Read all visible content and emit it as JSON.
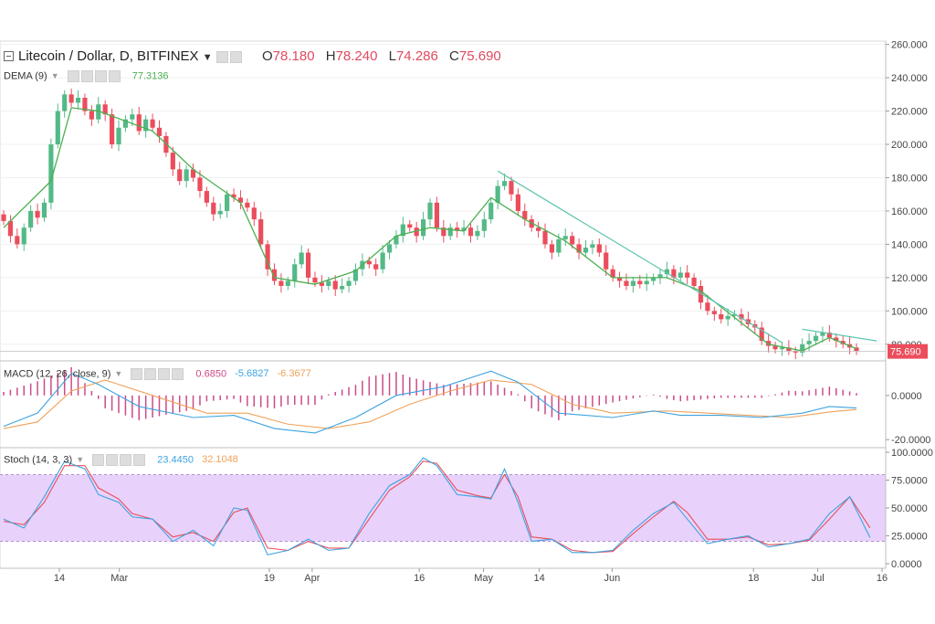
{
  "header": {
    "symbol": "Litecoin / Dollar, D, BITFINEX",
    "open_label": "O",
    "open": "78.180",
    "high_label": "H",
    "high": "78.240",
    "low_label": "L",
    "low": "74.286",
    "close_label": "C",
    "close": "75.690"
  },
  "indicators": {
    "dema": {
      "label": "DEMA (9)",
      "value": "77.3136"
    },
    "macd": {
      "label": "MACD (12, 26, close, 9)",
      "hist": "0.6850",
      "macd": "-5.6827",
      "signal": "-6.3677"
    },
    "stoch": {
      "label": "Stoch (14, 3, 3)",
      "k": "23.4450",
      "d": "32.1048"
    }
  },
  "colors": {
    "up": "#53b987",
    "down": "#eb4d5c",
    "dema": "#4caf50",
    "trendline": "#5ec6b0",
    "macd": "#3da3e0",
    "signal": "#f0a25a",
    "hist": "#cc4a8a",
    "stoch_k": "#3da3e0",
    "stoch_d": "#eb4d5c",
    "stoch_band": "#e8d2fb"
  },
  "chart_data": {
    "type": "candlestick",
    "price_axis": {
      "ylim": [
        70,
        262
      ],
      "ticks": [
        80,
        100,
        120,
        140,
        160,
        180,
        200,
        220,
        240,
        260
      ],
      "tick_labels": [
        "80.000",
        "100.000",
        "120.000",
        "140.000",
        "160.000",
        "180.000",
        "200.000",
        "220.000",
        "240.000",
        "260.000"
      ],
      "last_price": 75.69,
      "last_price_label": "75.690"
    },
    "x_axis": {
      "labels": [
        "14",
        "Mar",
        "19",
        "Apr",
        "16",
        "May",
        "14",
        "Jun",
        "18",
        "Jul",
        "16"
      ],
      "label_days": [
        14,
        28,
        63,
        73,
        98,
        113,
        126,
        143,
        176,
        191,
        206
      ]
    },
    "candles_daily_close": [
      154,
      145,
      140,
      150,
      160,
      156,
      165,
      200,
      220,
      230,
      225,
      228,
      220,
      215,
      224,
      218,
      200,
      210,
      215,
      218,
      208,
      215,
      210,
      205,
      195,
      185,
      178,
      185,
      180,
      172,
      165,
      158,
      160,
      170,
      168,
      165,
      162,
      155,
      140,
      125,
      118,
      115,
      118,
      128,
      135,
      120,
      117,
      115,
      118,
      113,
      115,
      118,
      125,
      130,
      128,
      125,
      135,
      140,
      145,
      152,
      150,
      145,
      155,
      165,
      150,
      145,
      150,
      148,
      150,
      145,
      148,
      155,
      165,
      175,
      178,
      170,
      160,
      155,
      150,
      148,
      140,
      135,
      143,
      145,
      140,
      135,
      138,
      140,
      135,
      125,
      120,
      118,
      115,
      118,
      116,
      118,
      120,
      122,
      125,
      120,
      123,
      120,
      115,
      105,
      100,
      98,
      95,
      97,
      98,
      95,
      92,
      90,
      82,
      79,
      77,
      78,
      76,
      75,
      80,
      82,
      85,
      87,
      84,
      82,
      80,
      78,
      76
    ],
    "dema": {
      "name": "DEMA (9)",
      "points": [
        [
          0,
          150
        ],
        [
          7,
          178
        ],
        [
          10,
          222
        ],
        [
          14,
          220
        ],
        [
          22,
          208
        ],
        [
          28,
          185
        ],
        [
          35,
          165
        ],
        [
          40,
          120
        ],
        [
          46,
          116
        ],
        [
          52,
          124
        ],
        [
          58,
          145
        ],
        [
          63,
          150
        ],
        [
          68,
          148
        ],
        [
          72,
          168
        ],
        [
          77,
          155
        ],
        [
          83,
          142
        ],
        [
          90,
          120
        ],
        [
          98,
          120
        ],
        [
          103,
          112
        ],
        [
          108,
          96
        ],
        [
          113,
          80
        ],
        [
          118,
          76
        ],
        [
          122,
          84
        ],
        [
          126,
          77.3136
        ]
      ]
    },
    "trendlines": [
      {
        "from": [
          73,
          184
        ],
        "to": [
          115,
          81
        ]
      },
      {
        "from": [
          118,
          89
        ],
        "to": [
          129,
          82
        ]
      }
    ],
    "macd": {
      "ylim": [
        -22,
        14
      ],
      "ticks": [
        0,
        -20
      ],
      "tick_labels": [
        "0.0000",
        "-20.0000"
      ],
      "macd_points": [
        [
          0,
          -14
        ],
        [
          5,
          -8
        ],
        [
          10,
          10
        ],
        [
          14,
          5
        ],
        [
          20,
          -5
        ],
        [
          28,
          -10
        ],
        [
          34,
          -9
        ],
        [
          40,
          -15
        ],
        [
          46,
          -17
        ],
        [
          52,
          -10
        ],
        [
          58,
          0
        ],
        [
          65,
          4
        ],
        [
          72,
          11
        ],
        [
          76,
          6
        ],
        [
          82,
          -8
        ],
        [
          90,
          -10
        ],
        [
          96,
          -7
        ],
        [
          100,
          -9
        ],
        [
          106,
          -9
        ],
        [
          112,
          -10
        ],
        [
          118,
          -8
        ],
        [
          122,
          -5
        ],
        [
          126,
          -5.6827
        ]
      ],
      "signal_points": [
        [
          0,
          -15
        ],
        [
          5,
          -12
        ],
        [
          10,
          2
        ],
        [
          15,
          7
        ],
        [
          22,
          0
        ],
        [
          30,
          -8
        ],
        [
          36,
          -8
        ],
        [
          42,
          -13
        ],
        [
          48,
          -15
        ],
        [
          54,
          -12
        ],
        [
          60,
          -4
        ],
        [
          66,
          2
        ],
        [
          72,
          7
        ],
        [
          78,
          5
        ],
        [
          84,
          -4
        ],
        [
          90,
          -8
        ],
        [
          98,
          -7
        ],
        [
          104,
          -8
        ],
        [
          110,
          -9
        ],
        [
          116,
          -10
        ],
        [
          122,
          -7.5
        ],
        [
          126,
          -6.3677
        ]
      ],
      "hist_label": "0.6850"
    },
    "stochastic": {
      "ylim": [
        0,
        100
      ],
      "band": [
        20,
        80
      ],
      "ticks": [
        0,
        25,
        50,
        75,
        100
      ],
      "tick_labels": [
        "0.0000",
        "25.0000",
        "50.0000",
        "75.0000",
        "100.0000"
      ],
      "k_points": [
        [
          0,
          40
        ],
        [
          3,
          32
        ],
        [
          6,
          60
        ],
        [
          9,
          92
        ],
        [
          12,
          85
        ],
        [
          14,
          62
        ],
        [
          17,
          55
        ],
        [
          19,
          42
        ],
        [
          22,
          40
        ],
        [
          25,
          20
        ],
        [
          28,
          30
        ],
        [
          31,
          16
        ],
        [
          34,
          50
        ],
        [
          36,
          48
        ],
        [
          39,
          8
        ],
        [
          42,
          12
        ],
        [
          45,
          22
        ],
        [
          48,
          12
        ],
        [
          51,
          14
        ],
        [
          54,
          45
        ],
        [
          57,
          70
        ],
        [
          60,
          80
        ],
        [
          62,
          95
        ],
        [
          64,
          88
        ],
        [
          67,
          62
        ],
        [
          70,
          60
        ],
        [
          72,
          58
        ],
        [
          74,
          85
        ],
        [
          76,
          55
        ],
        [
          78,
          20
        ],
        [
          81,
          22
        ],
        [
          84,
          10
        ],
        [
          87,
          10
        ],
        [
          90,
          12
        ],
        [
          93,
          30
        ],
        [
          96,
          45
        ],
        [
          99,
          55
        ],
        [
          101,
          40
        ],
        [
          104,
          18
        ],
        [
          107,
          22
        ],
        [
          110,
          25
        ],
        [
          113,
          15
        ],
        [
          116,
          18
        ],
        [
          119,
          22
        ],
        [
          122,
          45
        ],
        [
          125,
          60
        ],
        [
          128,
          23.445
        ]
      ],
      "d_points": [
        [
          0,
          38
        ],
        [
          3,
          35
        ],
        [
          6,
          55
        ],
        [
          9,
          88
        ],
        [
          12,
          88
        ],
        [
          14,
          68
        ],
        [
          17,
          58
        ],
        [
          19,
          45
        ],
        [
          22,
          40
        ],
        [
          25,
          24
        ],
        [
          28,
          28
        ],
        [
          31,
          20
        ],
        [
          34,
          46
        ],
        [
          36,
          50
        ],
        [
          39,
          14
        ],
        [
          42,
          12
        ],
        [
          45,
          20
        ],
        [
          48,
          14
        ],
        [
          51,
          14
        ],
        [
          54,
          40
        ],
        [
          57,
          66
        ],
        [
          60,
          78
        ],
        [
          62,
          92
        ],
        [
          64,
          90
        ],
        [
          67,
          66
        ],
        [
          70,
          61
        ],
        [
          72,
          59
        ],
        [
          74,
          80
        ],
        [
          76,
          60
        ],
        [
          78,
          24
        ],
        [
          81,
          22
        ],
        [
          84,
          12
        ],
        [
          87,
          10
        ],
        [
          90,
          11
        ],
        [
          93,
          27
        ],
        [
          96,
          42
        ],
        [
          99,
          56
        ],
        [
          101,
          46
        ],
        [
          104,
          22
        ],
        [
          107,
          22
        ],
        [
          110,
          24
        ],
        [
          113,
          17
        ],
        [
          116,
          18
        ],
        [
          119,
          21
        ],
        [
          122,
          40
        ],
        [
          125,
          60
        ],
        [
          128,
          32.1048
        ]
      ]
    }
  }
}
